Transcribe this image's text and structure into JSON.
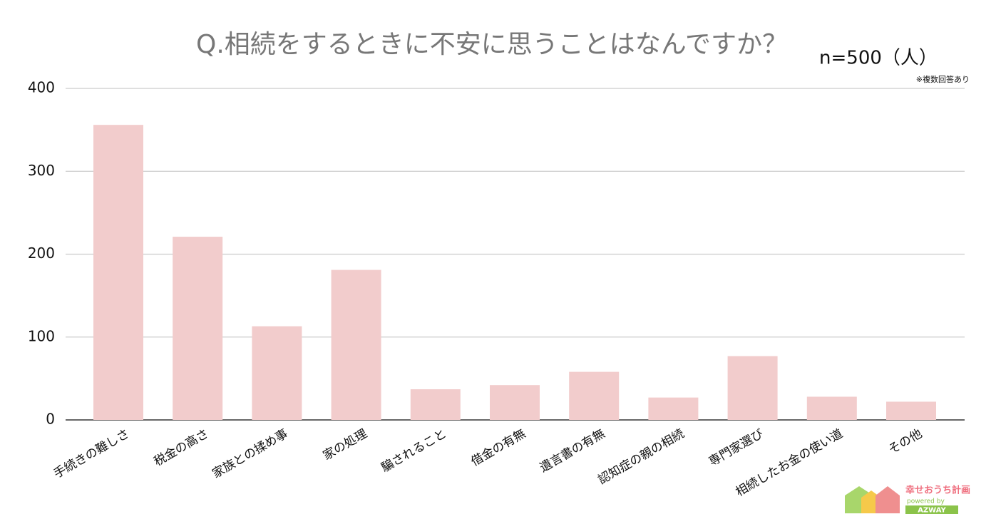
{
  "chart_data": {
    "type": "bar",
    "title": "Q.相続をするときに不安に思うことはなんですか？",
    "subtitle": "n=500（人）",
    "note": "※複数回答あり",
    "categories": [
      "手続きの難しさ",
      "税金の高さ",
      "家族との揉め事",
      "家の処理",
      "騙されること",
      "借金の有無",
      "遺言書の有無",
      "認知症の親の相続",
      "専門家選び",
      "相続したお金の使い道",
      "その他"
    ],
    "values": [
      356,
      221,
      113,
      181,
      37,
      42,
      58,
      27,
      77,
      28,
      22
    ],
    "color": "#f2cccc",
    "ylim": [
      0,
      400
    ],
    "yticks": [
      0,
      100,
      200,
      300,
      400
    ],
    "grid": true,
    "logo": {
      "name": "幸せおうち計画",
      "tagline": "powered by",
      "brand": "AZWAY"
    }
  }
}
